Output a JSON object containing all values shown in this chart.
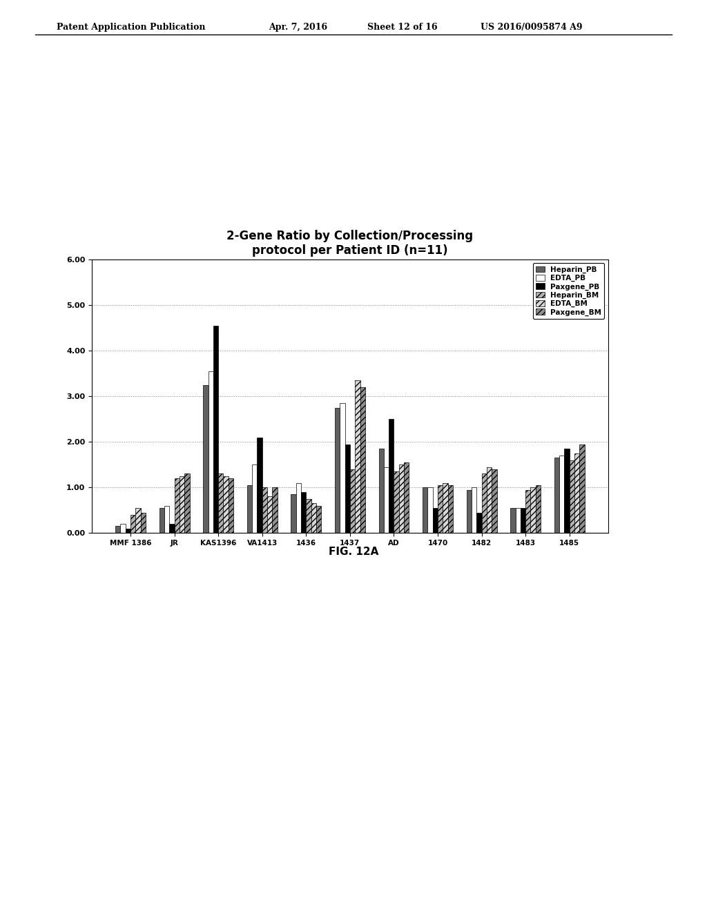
{
  "title": "2-Gene Ratio by Collection/Processing\nprotocol per Patient ID (n=11)",
  "categories": [
    "MMF 1386",
    "JR",
    "KAS1396",
    "VA1413",
    "1436",
    "1437",
    "AD",
    "1470",
    "1482",
    "1483",
    "1485"
  ],
  "series_names": [
    "Heparin_PB",
    "EDTA_PB",
    "Paxgene_PB",
    "Heparin_BM",
    "EDTA_BM",
    "Paxgene_BM"
  ],
  "data": {
    "Heparin_PB": [
      0.15,
      0.55,
      3.25,
      1.05,
      0.85,
      2.75,
      1.85,
      1.0,
      0.95,
      0.55,
      1.65
    ],
    "EDTA_PB": [
      0.2,
      0.6,
      3.55,
      1.5,
      1.1,
      2.85,
      1.45,
      1.0,
      1.0,
      0.55,
      1.7
    ],
    "Paxgene_PB": [
      0.1,
      0.2,
      4.55,
      2.1,
      0.9,
      1.95,
      2.5,
      0.55,
      0.45,
      0.55,
      1.85
    ],
    "Heparin_BM": [
      0.4,
      1.2,
      1.3,
      1.0,
      0.75,
      1.4,
      1.35,
      1.05,
      1.3,
      0.95,
      1.6
    ],
    "EDTA_BM": [
      0.55,
      1.25,
      1.25,
      0.8,
      0.65,
      3.35,
      1.5,
      1.1,
      1.45,
      1.0,
      1.75
    ],
    "Paxgene_BM": [
      0.45,
      1.3,
      1.2,
      1.0,
      0.6,
      3.2,
      1.55,
      1.05,
      1.4,
      1.05,
      1.95
    ]
  },
  "bar_colors": [
    "#606060",
    "#ffffff",
    "#000000",
    "#b0b0b0",
    "#d8d8d8",
    "#909090"
  ],
  "bar_hatches": [
    "",
    "",
    "",
    "////",
    "////",
    "////"
  ],
  "bar_edgecolors": [
    "#000000",
    "#000000",
    "#000000",
    "#000000",
    "#000000",
    "#000000"
  ],
  "ylim": [
    0,
    6.0
  ],
  "yticks": [
    0.0,
    1.0,
    2.0,
    3.0,
    4.0,
    5.0,
    6.0
  ],
  "ylabel": "",
  "xlabel": "",
  "fig_caption": "FIG. 12A",
  "header_text": "Patent Application Publication",
  "header_date": "Apr. 7, 2016",
  "header_sheet": "Sheet 12 of 16",
  "header_patent": "US 2016/0095874 A9",
  "background_color": "#ffffff",
  "chart_bg": "#ffffff",
  "legend_fontsize": 7.5,
  "title_fontsize": 12
}
